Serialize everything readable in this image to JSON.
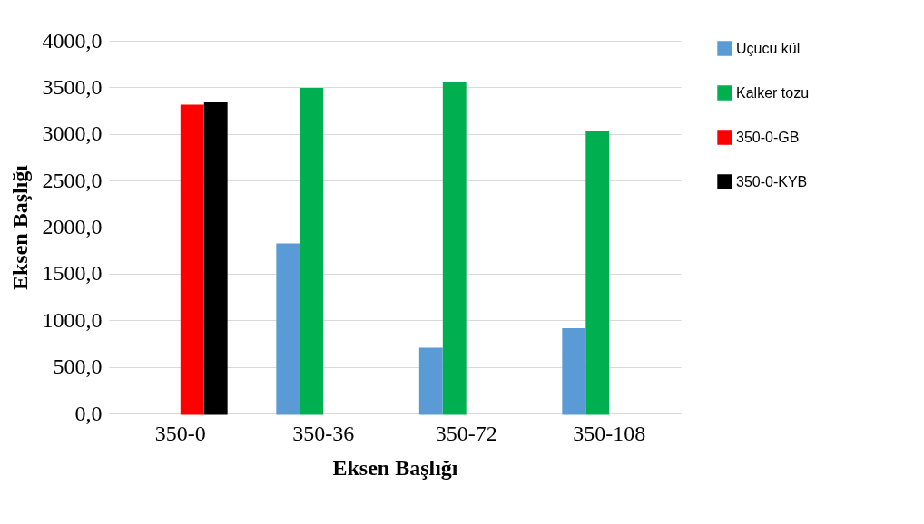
{
  "chart_data": {
    "type": "bar",
    "xlabel": "Eksen Başlığı",
    "ylabel": "Eksen Başlığı",
    "categories": [
      "350-0",
      "350-36",
      "350-72",
      "350-108"
    ],
    "series": [
      {
        "name": "Uçucu kül",
        "color": "#5b9bd5",
        "values": [
          null,
          1810,
          690,
          900
        ]
      },
      {
        "name": "Kalker tozu",
        "color": "#00b050",
        "values": [
          null,
          3480,
          3540,
          3020
        ]
      },
      {
        "name": "350-0-GB",
        "color": "#ff0000",
        "values": [
          3300,
          null,
          null,
          null
        ]
      },
      {
        "name": "350-0-KYB",
        "color": "#000000",
        "values": [
          3330,
          null,
          null,
          null
        ]
      }
    ],
    "ylim": [
      0,
      4000
    ],
    "yticks": [
      {
        "value": 0,
        "label": "0,0"
      },
      {
        "value": 500,
        "label": "500,0"
      },
      {
        "value": 1000,
        "label": "1000,0"
      },
      {
        "value": 1500,
        "label": "1500,0"
      },
      {
        "value": 2000,
        "label": "2000,0"
      },
      {
        "value": 2500,
        "label": "2500,0"
      },
      {
        "value": 3000,
        "label": "3000,0"
      },
      {
        "value": 3500,
        "label": "3500,0"
      },
      {
        "value": 4000,
        "label": "4000,0"
      }
    ],
    "grid": "y",
    "legend": "right"
  }
}
